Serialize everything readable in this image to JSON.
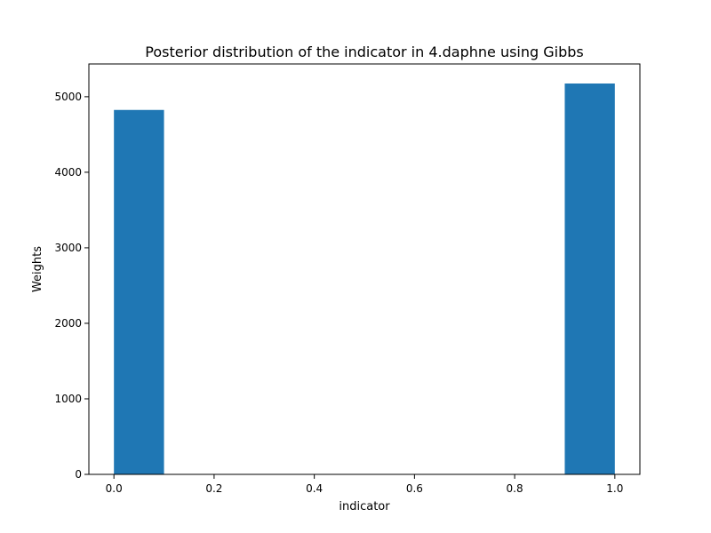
{
  "chart_data": {
    "type": "bar",
    "title": "Posterior distribution of the indicator in 4.daphne using Gibbs",
    "xlabel": "indicator",
    "ylabel": "Weights",
    "bins": [
      {
        "start": 0.0,
        "end": 0.1,
        "value": 4825
      },
      {
        "start": 0.1,
        "end": 0.2,
        "value": 0
      },
      {
        "start": 0.2,
        "end": 0.3,
        "value": 0
      },
      {
        "start": 0.3,
        "end": 0.4,
        "value": 0
      },
      {
        "start": 0.4,
        "end": 0.5,
        "value": 0
      },
      {
        "start": 0.5,
        "end": 0.6,
        "value": 0
      },
      {
        "start": 0.6,
        "end": 0.7,
        "value": 0
      },
      {
        "start": 0.7,
        "end": 0.8,
        "value": 0
      },
      {
        "start": 0.8,
        "end": 0.9,
        "value": 0
      },
      {
        "start": 0.9,
        "end": 1.0,
        "value": 5175
      }
    ],
    "xlim": [
      -0.05,
      1.05
    ],
    "ylim": [
      0,
      5433.75
    ],
    "xticks": [
      0.0,
      0.2,
      0.4,
      0.6,
      0.8,
      1.0
    ],
    "xtick_labels": [
      "0.0",
      "0.2",
      "0.4",
      "0.6",
      "0.8",
      "1.0"
    ],
    "yticks": [
      0,
      1000,
      2000,
      3000,
      4000,
      5000
    ],
    "ytick_labels": [
      "0",
      "1000",
      "2000",
      "3000",
      "4000",
      "5000"
    ],
    "bar_color": "#1f77b4",
    "grid": false,
    "legend": "none"
  }
}
